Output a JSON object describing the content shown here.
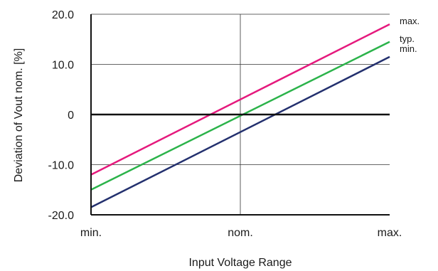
{
  "chart_data": {
    "type": "line",
    "title": "",
    "xlabel": "Input Voltage Range",
    "ylabel": "Deviation of Vout nom. [%]",
    "x_ticks": [
      "min.",
      "nom.",
      "max."
    ],
    "x_range": [
      0,
      2
    ],
    "ylim": [
      -20,
      20
    ],
    "y_ticks": [
      {
        "value": 20,
        "label": "20.0"
      },
      {
        "value": 10,
        "label": "10.0"
      },
      {
        "value": 0,
        "label": "0"
      },
      {
        "value": -10,
        "label": "-10.0"
      },
      {
        "value": -20,
        "label": "-20.0"
      }
    ],
    "grid": true,
    "legend": "labels at right end of lines",
    "series": [
      {
        "name": "max.",
        "color": "#e5197d",
        "x": [
          0,
          2
        ],
        "y": [
          -12.0,
          18.0
        ]
      },
      {
        "name": "typ.",
        "color": "#2bb34a",
        "x": [
          0,
          2
        ],
        "y": [
          -15.0,
          14.5
        ]
      },
      {
        "name": "min.",
        "color": "#23306e",
        "x": [
          0,
          2
        ],
        "y": [
          -18.5,
          11.5
        ]
      }
    ]
  }
}
